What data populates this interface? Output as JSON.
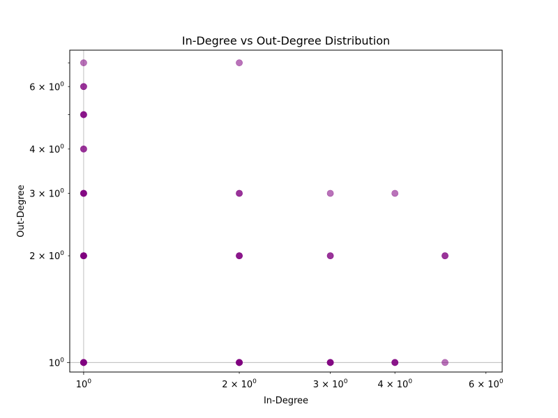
{
  "chart_data": {
    "type": "scatter",
    "title": "In-Degree vs Out-Degree Distribution",
    "xlabel": "In-Degree",
    "ylabel": "Out-Degree",
    "xscale": "log",
    "yscale": "log",
    "xlim": [
      0.94,
      6.45
    ],
    "ylim": [
      0.94,
      7.6
    ],
    "grid": "base ticks only",
    "marker_color": "#800080",
    "marker_alpha": 0.55,
    "x_ticks": [
      {
        "value": 1,
        "base": "10",
        "exp": "0",
        "mult": ""
      },
      {
        "value": 2,
        "base": "10",
        "exp": "0",
        "mult": "2 × "
      },
      {
        "value": 3,
        "base": "10",
        "exp": "0",
        "mult": "3 × "
      },
      {
        "value": 4,
        "base": "10",
        "exp": "0",
        "mult": "4 × "
      },
      {
        "value": 6,
        "base": "10",
        "exp": "0",
        "mult": "6 × "
      }
    ],
    "y_ticks": [
      {
        "value": 1,
        "base": "10",
        "exp": "0",
        "mult": ""
      },
      {
        "value": 2,
        "base": "10",
        "exp": "0",
        "mult": "2 × "
      },
      {
        "value": 3,
        "base": "10",
        "exp": "0",
        "mult": "3 × "
      },
      {
        "value": 4,
        "base": "10",
        "exp": "0",
        "mult": "4 × "
      },
      {
        "value": 6,
        "base": "10",
        "exp": "0",
        "mult": "6 × "
      }
    ],
    "y_minor_unlabeled": [
      5,
      7
    ],
    "points": [
      {
        "x": 1,
        "y": 1,
        "count": 6
      },
      {
        "x": 1,
        "y": 2,
        "count": 6
      },
      {
        "x": 1,
        "y": 3,
        "count": 4
      },
      {
        "x": 1,
        "y": 4,
        "count": 2
      },
      {
        "x": 1,
        "y": 5,
        "count": 3
      },
      {
        "x": 1,
        "y": 6,
        "count": 2
      },
      {
        "x": 1,
        "y": 7,
        "count": 1
      },
      {
        "x": 2,
        "y": 1,
        "count": 6
      },
      {
        "x": 2,
        "y": 2,
        "count": 3
      },
      {
        "x": 2,
        "y": 3,
        "count": 2
      },
      {
        "x": 2,
        "y": 7,
        "count": 1
      },
      {
        "x": 3,
        "y": 1,
        "count": 4
      },
      {
        "x": 3,
        "y": 2,
        "count": 2
      },
      {
        "x": 3,
        "y": 3,
        "count": 1
      },
      {
        "x": 4,
        "y": 1,
        "count": 3
      },
      {
        "x": 4,
        "y": 3,
        "count": 1
      },
      {
        "x": 5,
        "y": 1,
        "count": 1
      },
      {
        "x": 5,
        "y": 2,
        "count": 2
      }
    ]
  }
}
